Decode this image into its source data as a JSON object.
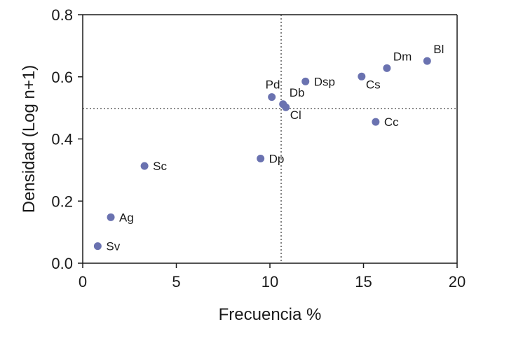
{
  "chart_data": {
    "type": "scatter",
    "title": "",
    "xlabel": "Frecuencia %",
    "ylabel": "Densidad (Log n+1)",
    "xlim": [
      0,
      20
    ],
    "ylim": [
      0,
      0.8
    ],
    "xticks": [
      0,
      5,
      10,
      15,
      20
    ],
    "xtick_labels": [
      "0",
      "5",
      "10",
      "15",
      "20"
    ],
    "yticks": [
      0,
      0.2,
      0.4,
      0.6,
      0.8
    ],
    "ytick_labels": [
      "0.0",
      "0.2",
      "0.4",
      "0.6",
      "0.8"
    ],
    "grid": false,
    "marker_color": "#6a72b0",
    "reference_lines": {
      "x": 10.6,
      "y": 0.497
    },
    "points": [
      {
        "label": "Sv",
        "x": 0.8,
        "y": 0.055,
        "pos": "right"
      },
      {
        "label": "Ag",
        "x": 1.5,
        "y": 0.148,
        "pos": "right"
      },
      {
        "label": "Sc",
        "x": 3.3,
        "y": 0.313,
        "pos": "right"
      },
      {
        "label": "Dp",
        "x": 9.5,
        "y": 0.337,
        "pos": "right"
      },
      {
        "label": "Pd",
        "x": 10.1,
        "y": 0.535,
        "pos": "above-left"
      },
      {
        "label": "Db",
        "x": 10.7,
        "y": 0.512,
        "pos": "above-right"
      },
      {
        "label": "Cl",
        "x": 10.85,
        "y": 0.502,
        "pos": "below-right"
      },
      {
        "label": "Dsp",
        "x": 11.9,
        "y": 0.585,
        "pos": "right"
      },
      {
        "label": "Cs",
        "x": 14.9,
        "y": 0.601,
        "pos": "below-right"
      },
      {
        "label": "Cc",
        "x": 15.65,
        "y": 0.455,
        "pos": "right"
      },
      {
        "label": "Dm",
        "x": 16.25,
        "y": 0.628,
        "pos": "above-right"
      },
      {
        "label": "Bl",
        "x": 18.4,
        "y": 0.651,
        "pos": "above-right"
      }
    ]
  }
}
